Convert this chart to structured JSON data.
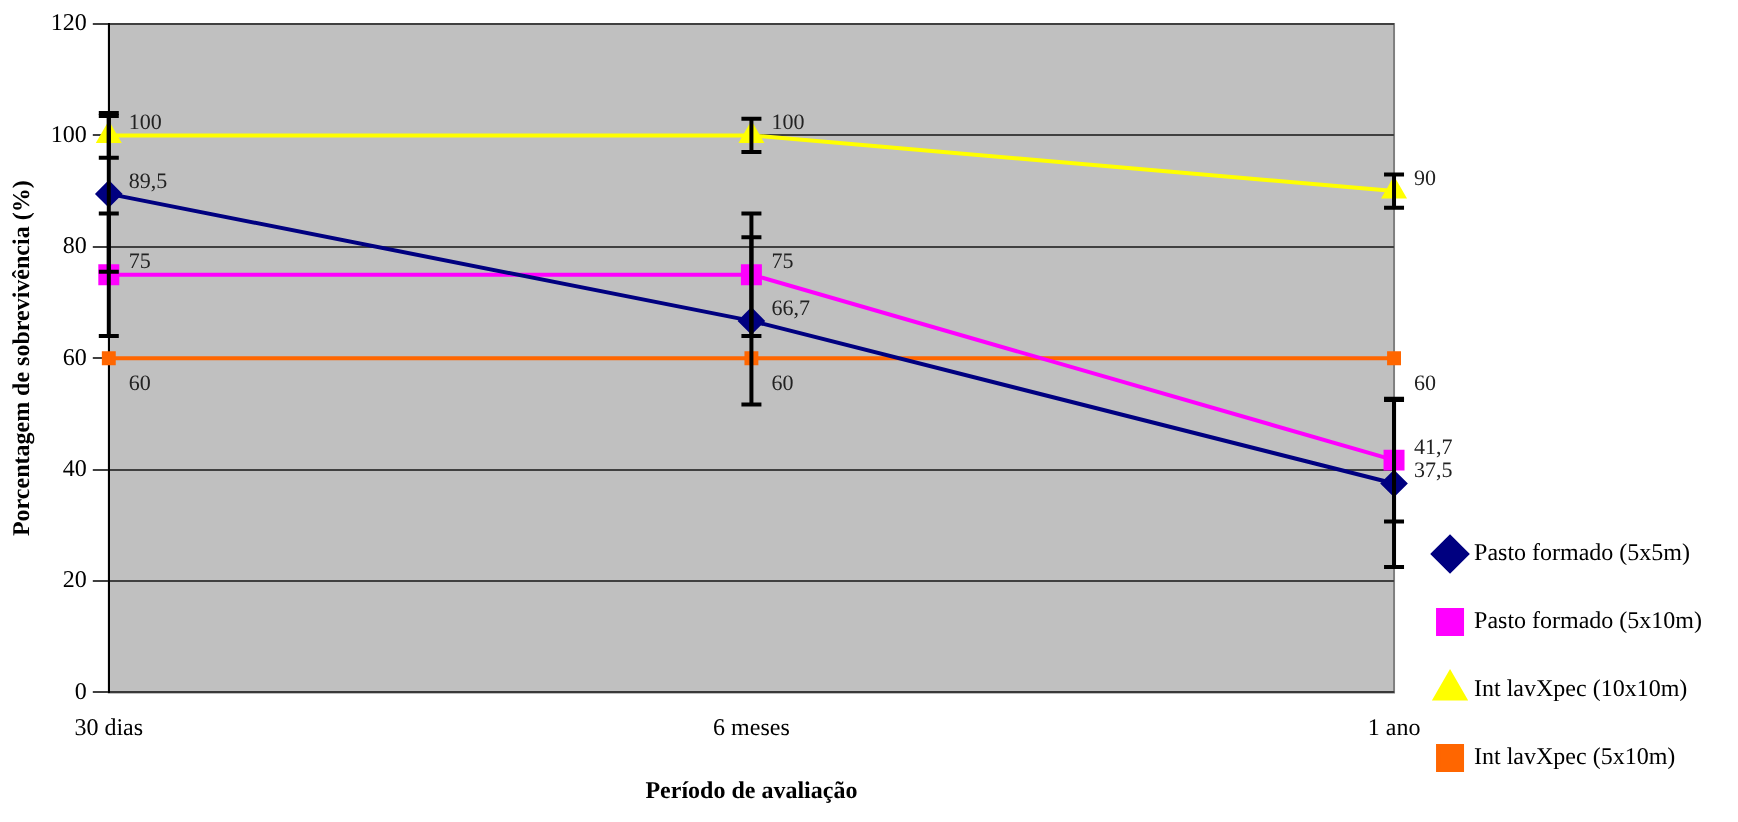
{
  "chart_data": {
    "type": "line",
    "xlabel": "Período de avaliação",
    "ylabel": "Porcentagem de sobrevivência (%)",
    "categories": [
      "30 dias",
      "6 meses",
      "1 ano"
    ],
    "series": [
      {
        "name": "Pasto formado (5x5m)",
        "color": "#000080",
        "marker": "diamond",
        "values": [
          89.5,
          66.7,
          37.5
        ],
        "errors": [
          14,
          15,
          15
        ],
        "value_labels": [
          "89,5",
          "66,7",
          "37,5"
        ]
      },
      {
        "name": "Pasto formado (5x10m)",
        "color": "#ff00ff",
        "marker": "square",
        "values": [
          75,
          75,
          41.7
        ],
        "errors": [
          11,
          11,
          11
        ],
        "value_labels": [
          "75",
          "75",
          "41,7"
        ]
      },
      {
        "name": "Int lavXpec (10x10m)",
        "color": "#ffff00",
        "marker": "triangle",
        "values": [
          100,
          100,
          90
        ],
        "errors": [
          4,
          3,
          3
        ],
        "value_labels": [
          "100",
          "100",
          "90"
        ]
      },
      {
        "name": "Int lavXpec (5x10m)",
        "color": "#ff6600",
        "marker": "square",
        "values": [
          60,
          60,
          60
        ],
        "value_labels": [
          "60",
          "60",
          "60"
        ]
      }
    ],
    "ylim": [
      0,
      120
    ],
    "yticks": [
      0,
      20,
      40,
      60,
      80,
      100,
      120
    ],
    "grid": "y",
    "legend": "right"
  }
}
